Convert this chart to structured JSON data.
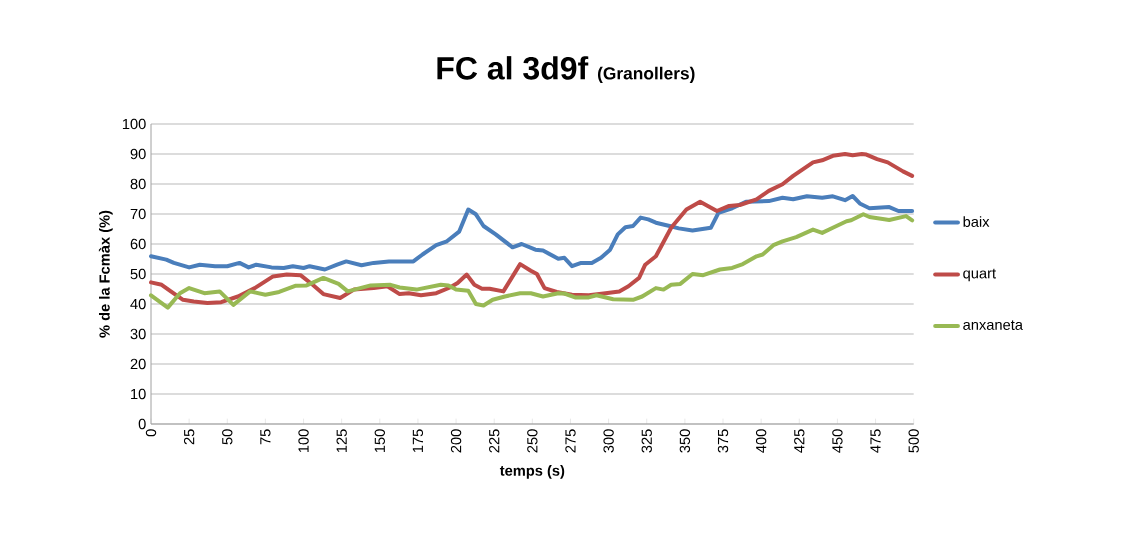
{
  "chart_data": {
    "type": "line",
    "title": "FC al 3d9f",
    "subtitle": "(Granollers)",
    "xlabel": "temps (s)",
    "ylabel": "% de la Fcmàx (%)",
    "xlim": [
      0,
      500
    ],
    "xticks": [
      0,
      25,
      50,
      75,
      100,
      125,
      150,
      175,
      200,
      225,
      250,
      275,
      300,
      325,
      350,
      375,
      400,
      425,
      450,
      475,
      500
    ],
    "ylim": [
      0,
      100
    ],
    "yticks": [
      0,
      10,
      20,
      30,
      40,
      50,
      60,
      70,
      80,
      90,
      100
    ],
    "grid": "y",
    "legend": "right",
    "marker": "none",
    "line_style": "solid",
    "series": [
      {
        "name": "baix",
        "color": "#4a7ebb",
        "x": [
          0,
          10,
          15,
          25,
          32,
          42,
          50,
          58,
          64,
          69,
          79,
          87,
          93,
          100,
          104,
          114,
          122,
          128,
          138,
          146,
          156,
          172,
          178,
          187,
          194,
          202,
          208,
          213,
          218,
          226,
          237,
          243,
          252,
          257,
          267,
          271,
          276,
          282,
          289,
          295,
          301,
          306,
          311,
          316,
          321,
          326,
          331,
          340,
          346,
          355,
          367,
          372,
          381,
          390,
          405,
          414,
          421,
          430,
          440,
          447,
          455,
          460,
          465,
          471,
          484,
          490,
          499
        ],
        "values": [
          55.9,
          54.8,
          53.7,
          52.2,
          53.1,
          52.6,
          52.6,
          53.7,
          52.2,
          53.1,
          52.2,
          52.0,
          52.6,
          52.0,
          52.6,
          51.5,
          53.1,
          54.2,
          52.9,
          53.7,
          54.2,
          54.2,
          56.5,
          59.6,
          60.9,
          64.1,
          71.5,
          69.9,
          66.0,
          63.2,
          58.9,
          60.0,
          58.1,
          57.8,
          55.1,
          55.4,
          52.6,
          53.7,
          53.7,
          55.4,
          58.1,
          63.2,
          65.6,
          66.0,
          68.8,
          68.2,
          67.1,
          66.0,
          65.2,
          64.5,
          65.4,
          70.4,
          71.9,
          74.1,
          74.3,
          75.4,
          74.9,
          75.9,
          75.4,
          75.9,
          74.6,
          76.0,
          73.4,
          71.9,
          72.3,
          71.0,
          71.0
        ]
      },
      {
        "name": "quart",
        "color": "#be4b48",
        "x": [
          0,
          7,
          13,
          21,
          28,
          37,
          46,
          57,
          68,
          80,
          89,
          98,
          106,
          113,
          124,
          133,
          146,
          155,
          163,
          169,
          177,
          187,
          196,
          201,
          207,
          212,
          217,
          222,
          231,
          242,
          249,
          253,
          258,
          266,
          276,
          287,
          298,
          307,
          313,
          320,
          324,
          331,
          341,
          351,
          360,
          371,
          379,
          386,
          397,
          405,
          414,
          421,
          434,
          440,
          447,
          455,
          460,
          466,
          469,
          476,
          483,
          493,
          499
        ],
        "values": [
          47.2,
          46.4,
          44.2,
          41.4,
          40.8,
          40.3,
          40.6,
          42.5,
          45.3,
          49.2,
          49.8,
          49.6,
          46.4,
          43.3,
          42.0,
          44.8,
          45.3,
          45.9,
          43.3,
          43.6,
          42.9,
          43.6,
          45.5,
          47.0,
          49.8,
          46.4,
          45.1,
          45.1,
          44.2,
          53.3,
          51.1,
          50.0,
          45.3,
          44.0,
          43.1,
          42.9,
          43.6,
          44.2,
          45.9,
          48.7,
          53.1,
          55.9,
          65.4,
          71.5,
          74.1,
          71.0,
          72.7,
          73.0,
          74.9,
          77.7,
          79.9,
          82.7,
          87.2,
          87.9,
          89.4,
          90.0,
          89.6,
          90.0,
          89.8,
          88.3,
          87.2,
          84.2,
          82.7
        ]
      },
      {
        "name": "anxaneta",
        "color": "#98b954",
        "x": [
          0,
          11,
          19,
          25,
          35,
          45,
          54,
          65,
          75,
          84,
          95,
          102,
          113,
          123,
          129,
          144,
          157,
          163,
          174,
          190,
          195,
          200,
          208,
          213,
          218,
          224,
          232,
          242,
          249,
          257,
          267,
          271,
          278,
          287,
          292,
          303,
          316,
          322,
          331,
          336,
          341,
          347,
          355,
          362,
          373,
          381,
          388,
          397,
          401,
          408,
          414,
          423,
          434,
          440,
          447,
          456,
          459,
          467,
          471,
          484,
          495,
          499
        ],
        "values": [
          42.9,
          38.8,
          43.6,
          45.3,
          43.6,
          44.2,
          39.7,
          44.2,
          43.1,
          44.0,
          46.1,
          46.2,
          48.7,
          46.7,
          44.2,
          46.2,
          46.4,
          45.5,
          44.8,
          46.4,
          46.2,
          44.8,
          44.4,
          40.0,
          39.5,
          41.4,
          42.5,
          43.6,
          43.6,
          42.5,
          43.6,
          43.5,
          42.2,
          42.2,
          42.9,
          41.6,
          41.4,
          42.5,
          45.3,
          44.8,
          46.4,
          46.7,
          50.0,
          49.6,
          51.5,
          52.0,
          53.3,
          55.9,
          56.5,
          59.6,
          60.9,
          62.3,
          64.8,
          63.7,
          65.4,
          67.6,
          67.9,
          69.9,
          69.0,
          68.0,
          69.3,
          67.9
        ]
      }
    ]
  }
}
